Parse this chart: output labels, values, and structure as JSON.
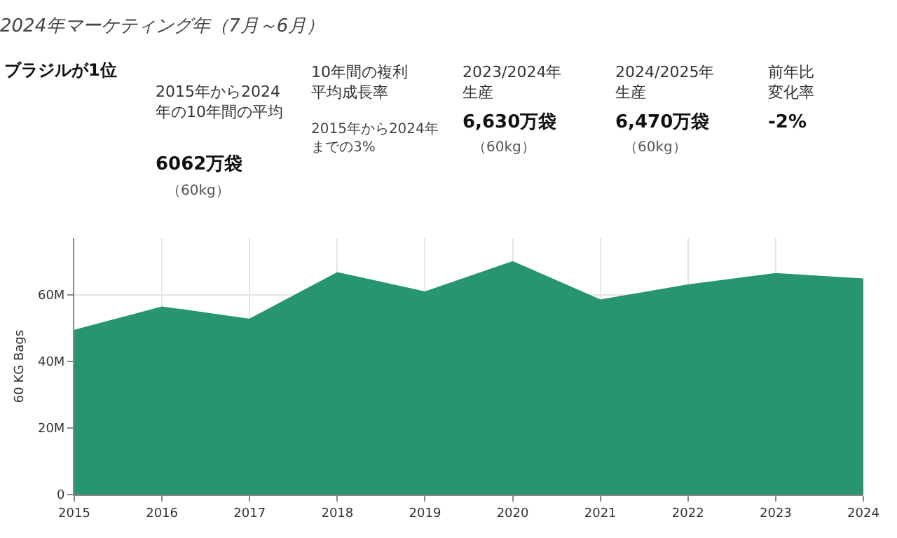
{
  "chart_data": {
    "type": "area",
    "title": "2024年マーケティング年（7月～6月）",
    "ylabel": "60 KG Bags",
    "x": [
      2015,
      2016,
      2017,
      2018,
      2019,
      2020,
      2021,
      2022,
      2023,
      2024
    ],
    "series": [
      {
        "color": "#269570",
        "values": [
          49300000,
          56300000,
          52600000,
          66600000,
          60800000,
          69900000,
          58400000,
          62900000,
          66300000,
          64700000
        ]
      }
    ],
    "xlim": [
      2015,
      2024
    ],
    "xticks": [
      2015,
      2016,
      2017,
      2018,
      2019,
      2020,
      2021,
      2022,
      2023,
      2024
    ],
    "ylim": [
      0,
      77000000
    ],
    "yticks": [
      {
        "value": 0,
        "label": "0"
      },
      {
        "value": 20000000,
        "label": "20M"
      },
      {
        "value": 40000000,
        "label": "40M"
      },
      {
        "value": 60000000,
        "label": "60M"
      }
    ],
    "grid": true,
    "annotations": [
      "ブラジルが1位",
      "2015年から2024年の10年間の平均",
      "6062万袋",
      "（60kg）",
      "10年間の複利平均成長率",
      "2015年から2024年までの3%",
      "2023/2024年生産",
      "6,630万袋",
      "（60kg）",
      "2024/2025年生産",
      "6,470万袋",
      "（60kg）",
      "前年比変化率",
      "-2%"
    ]
  }
}
